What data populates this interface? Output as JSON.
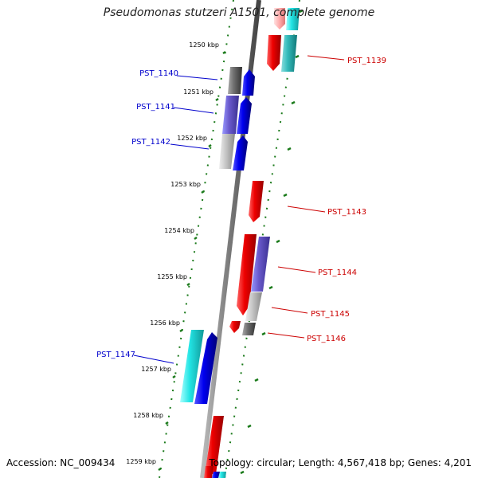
{
  "title": "Pseudomonas stutzeri A1501, complete genome",
  "footer": {
    "accession": "Accession: NC_009434",
    "topology": "Topology: circular; Length: 4,567,418 bp; Genes: 4,201"
  },
  "colors": {
    "backbone": "#777777",
    "tick_major": "#1a7a1a",
    "forward_label": "#0000cc",
    "reverse_label": "#cc0000"
  },
  "scale": {
    "labels": [
      "1250 kbp",
      "1251 kbp",
      "1252 kbp",
      "1253 kbp",
      "1254 kbp",
      "1255 kbp",
      "1256 kbp",
      "1257 kbp",
      "1258 kbp",
      "1259 kbp"
    ]
  },
  "genes": [
    {
      "label": "PST_1139",
      "strand": "reverse"
    },
    {
      "label": "PST_1140",
      "strand": "forward"
    },
    {
      "label": "PST_1141",
      "strand": "forward"
    },
    {
      "label": "PST_1142",
      "strand": "forward"
    },
    {
      "label": "PST_1143",
      "strand": "reverse"
    },
    {
      "label": "PST_1144",
      "strand": "reverse"
    },
    {
      "label": "PST_1145",
      "strand": "reverse"
    },
    {
      "label": "PST_1146",
      "strand": "reverse"
    },
    {
      "label": "PST_1147",
      "strand": "forward"
    }
  ]
}
